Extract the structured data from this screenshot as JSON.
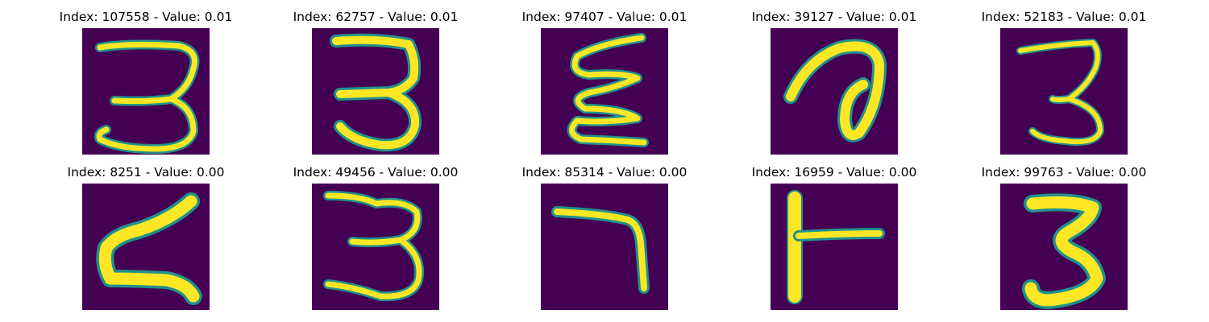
{
  "colors": {
    "background": "#440154",
    "stroke_core": "#fde725",
    "stroke_edge": "#21918c",
    "stroke_mid": "#5ec962"
  },
  "panels": [
    {
      "title": "Index: 107558 - Value: 0.01",
      "digit_icon": "digit-3-icon"
    },
    {
      "title": "Index: 62757 - Value: 0.01",
      "digit_icon": "digit-3-icon"
    },
    {
      "title": "Index: 97407 - Value: 0.01",
      "digit_icon": "zigzag-icon"
    },
    {
      "title": "Index: 39127 - Value: 0.01",
      "digit_icon": "loop-icon"
    },
    {
      "title": "Index: 52183 - Value: 0.01",
      "digit_icon": "digit-3-icon"
    },
    {
      "title": "Index: 8251 - Value: 0.00",
      "digit_icon": "zigzag-icon"
    },
    {
      "title": "Index: 49456 - Value: 0.00",
      "digit_icon": "digit-3-icon"
    },
    {
      "title": "Index: 85314 - Value: 0.00",
      "digit_icon": "digit-7-icon"
    },
    {
      "title": "Index: 16959 - Value: 0.00",
      "digit_icon": "t-shape-icon"
    },
    {
      "title": "Index: 99763 - Value: 0.00",
      "digit_icon": "digit-3-icon"
    }
  ]
}
